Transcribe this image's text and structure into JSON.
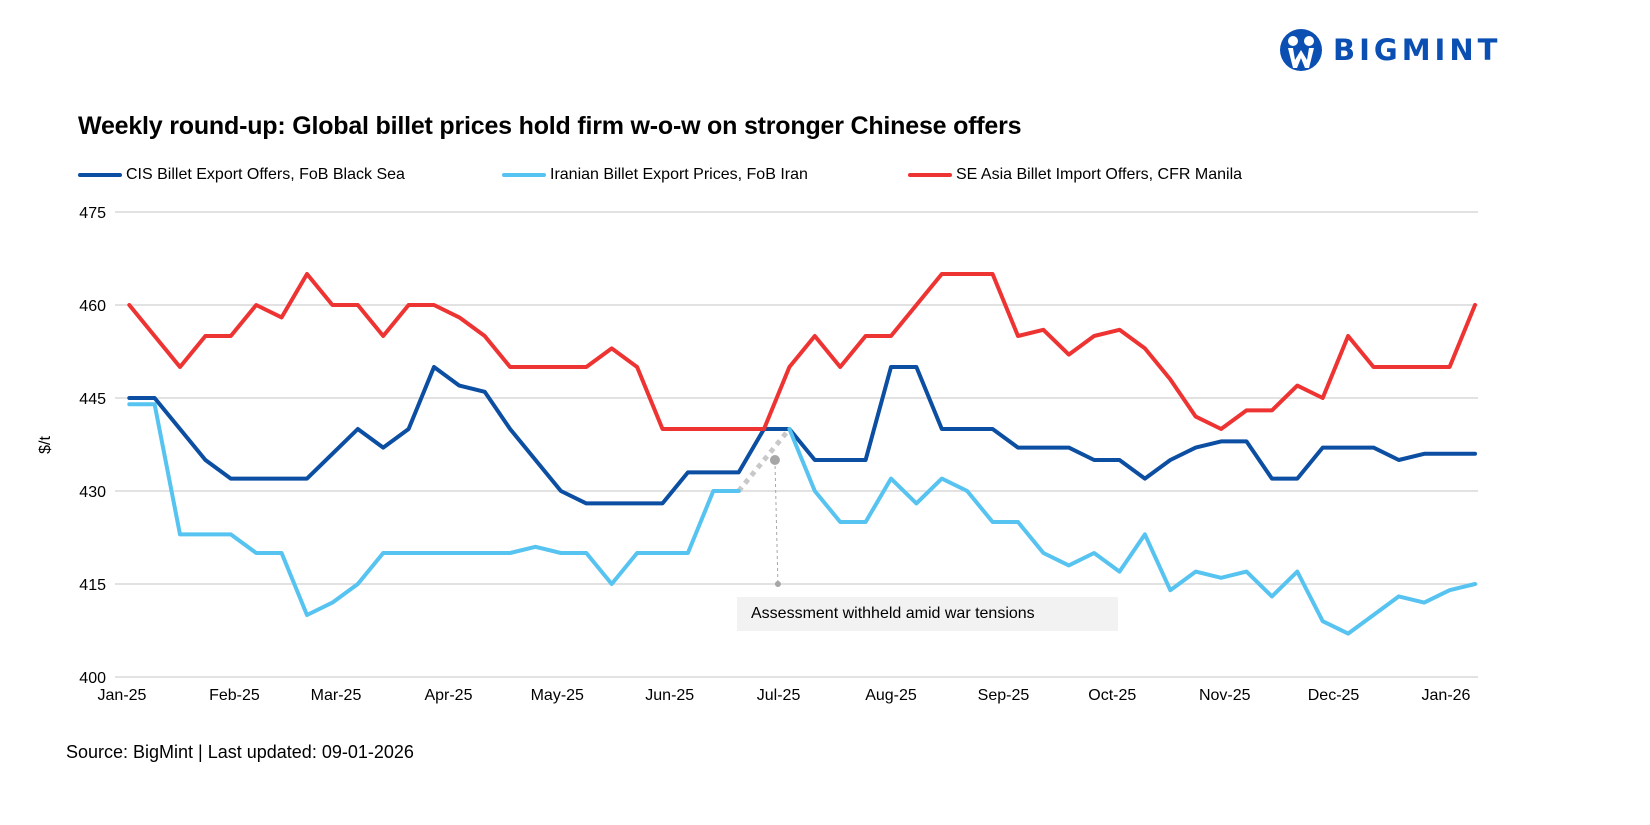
{
  "logo": {
    "text": "BIGMINT",
    "color": "#0b4fb3"
  },
  "title": "Weekly round-up: Global billet prices hold firm w-o-w on stronger Chinese offers",
  "source": "Source: BigMint | Last updated: 09-01-2026",
  "chart_data": {
    "type": "line",
    "title": "Weekly round-up: Global billet prices hold firm w-o-w on stronger Chinese offers",
    "xlabel": "",
    "ylabel": "$/t",
    "ylim": [
      400,
      475
    ],
    "yticks": [
      400,
      415,
      430,
      445,
      460,
      475
    ],
    "xlim": [
      "2025-01-01",
      "2026-01-09"
    ],
    "xticks": [
      {
        "date": "2025-01-01",
        "label": "Jan-25"
      },
      {
        "date": "2025-02-01",
        "label": "Feb-25"
      },
      {
        "date": "2025-03-01",
        "label": "Mar-25"
      },
      {
        "date": "2025-04-01",
        "label": "Apr-25"
      },
      {
        "date": "2025-05-01",
        "label": "May-25"
      },
      {
        "date": "2025-06-01",
        "label": "Jun-25"
      },
      {
        "date": "2025-07-01",
        "label": "Jul-25"
      },
      {
        "date": "2025-08-01",
        "label": "Aug-25"
      },
      {
        "date": "2025-09-01",
        "label": "Sep-25"
      },
      {
        "date": "2025-10-01",
        "label": "Oct-25"
      },
      {
        "date": "2025-11-01",
        "label": "Nov-25"
      },
      {
        "date": "2025-12-01",
        "label": "Dec-25"
      },
      {
        "date": "2026-01-01",
        "label": "Jan-26"
      }
    ],
    "grid": "horizontal",
    "legend_position": "top",
    "x": [
      "2025-01-03",
      "2025-01-10",
      "2025-01-17",
      "2025-01-24",
      "2025-01-31",
      "2025-02-07",
      "2025-02-14",
      "2025-02-21",
      "2025-02-28",
      "2025-03-07",
      "2025-03-14",
      "2025-03-21",
      "2025-03-28",
      "2025-04-04",
      "2025-04-11",
      "2025-04-18",
      "2025-04-25",
      "2025-05-02",
      "2025-05-09",
      "2025-05-16",
      "2025-05-23",
      "2025-05-30",
      "2025-06-06",
      "2025-06-13",
      "2025-06-20",
      "2025-06-27",
      "2025-07-04",
      "2025-07-11",
      "2025-07-18",
      "2025-07-25",
      "2025-08-01",
      "2025-08-08",
      "2025-08-15",
      "2025-08-22",
      "2025-08-29",
      "2025-09-05",
      "2025-09-12",
      "2025-09-19",
      "2025-09-26",
      "2025-10-03",
      "2025-10-10",
      "2025-10-17",
      "2025-10-24",
      "2025-10-31",
      "2025-11-07",
      "2025-11-14",
      "2025-11-21",
      "2025-11-28",
      "2025-12-05",
      "2025-12-12",
      "2025-12-19",
      "2025-12-26",
      "2026-01-02",
      "2026-01-09"
    ],
    "series": [
      {
        "name": "CIS Billet Export Offers, FoB Black Sea",
        "color": "#0b4ea2",
        "values": [
          445,
          445,
          440,
          435,
          432,
          432,
          432,
          432,
          436,
          440,
          437,
          440,
          450,
          447,
          446,
          440,
          435,
          430,
          428,
          428,
          428,
          428,
          433,
          433,
          433,
          440,
          440,
          435,
          435,
          435,
          450,
          450,
          440,
          440,
          440,
          437,
          437,
          437,
          435,
          435,
          432,
          435,
          437,
          438,
          438,
          432,
          432,
          437,
          437,
          437,
          435,
          436,
          436,
          436
        ]
      },
      {
        "name": "Iranian Billet Export Prices, FoB Iran",
        "color": "#56c3f0",
        "values": [
          444,
          444,
          423,
          423,
          423,
          420,
          420,
          410,
          412,
          415,
          420,
          420,
          420,
          420,
          420,
          420,
          421,
          420,
          420,
          415,
          420,
          420,
          420,
          430,
          430,
          null,
          440,
          430,
          425,
          425,
          432,
          428,
          432,
          430,
          425,
          425,
          420,
          418,
          420,
          417,
          423,
          414,
          417,
          416,
          417,
          413,
          417,
          409,
          407,
          410,
          413,
          412,
          414,
          415
        ]
      },
      {
        "name": "SE Asia Billet Import Offers, CFR Manila",
        "color": "#ee3432",
        "values": [
          460,
          455,
          450,
          455,
          455,
          460,
          458,
          465,
          460,
          460,
          455,
          460,
          460,
          458,
          455,
          450,
          450,
          450,
          450,
          453,
          450,
          440,
          440,
          440,
          440,
          440,
          450,
          455,
          450,
          455,
          455,
          460,
          465,
          465,
          465,
          455,
          456,
          452,
          455,
          456,
          453,
          448,
          442,
          440,
          443,
          443,
          447,
          445,
          455,
          450,
          450,
          450,
          450,
          460
        ]
      }
    ],
    "annotations": [
      {
        "text": "Assessment withheld amid  war tensions",
        "series": "Iranian Billet Export Prices, FoB Iran",
        "gap_from": "2025-06-20",
        "gap_to": "2025-07-04",
        "marker_date": "2025-06-30",
        "marker_value": 435,
        "pointer_value": 415,
        "color": "#a6a6a6"
      }
    ]
  }
}
